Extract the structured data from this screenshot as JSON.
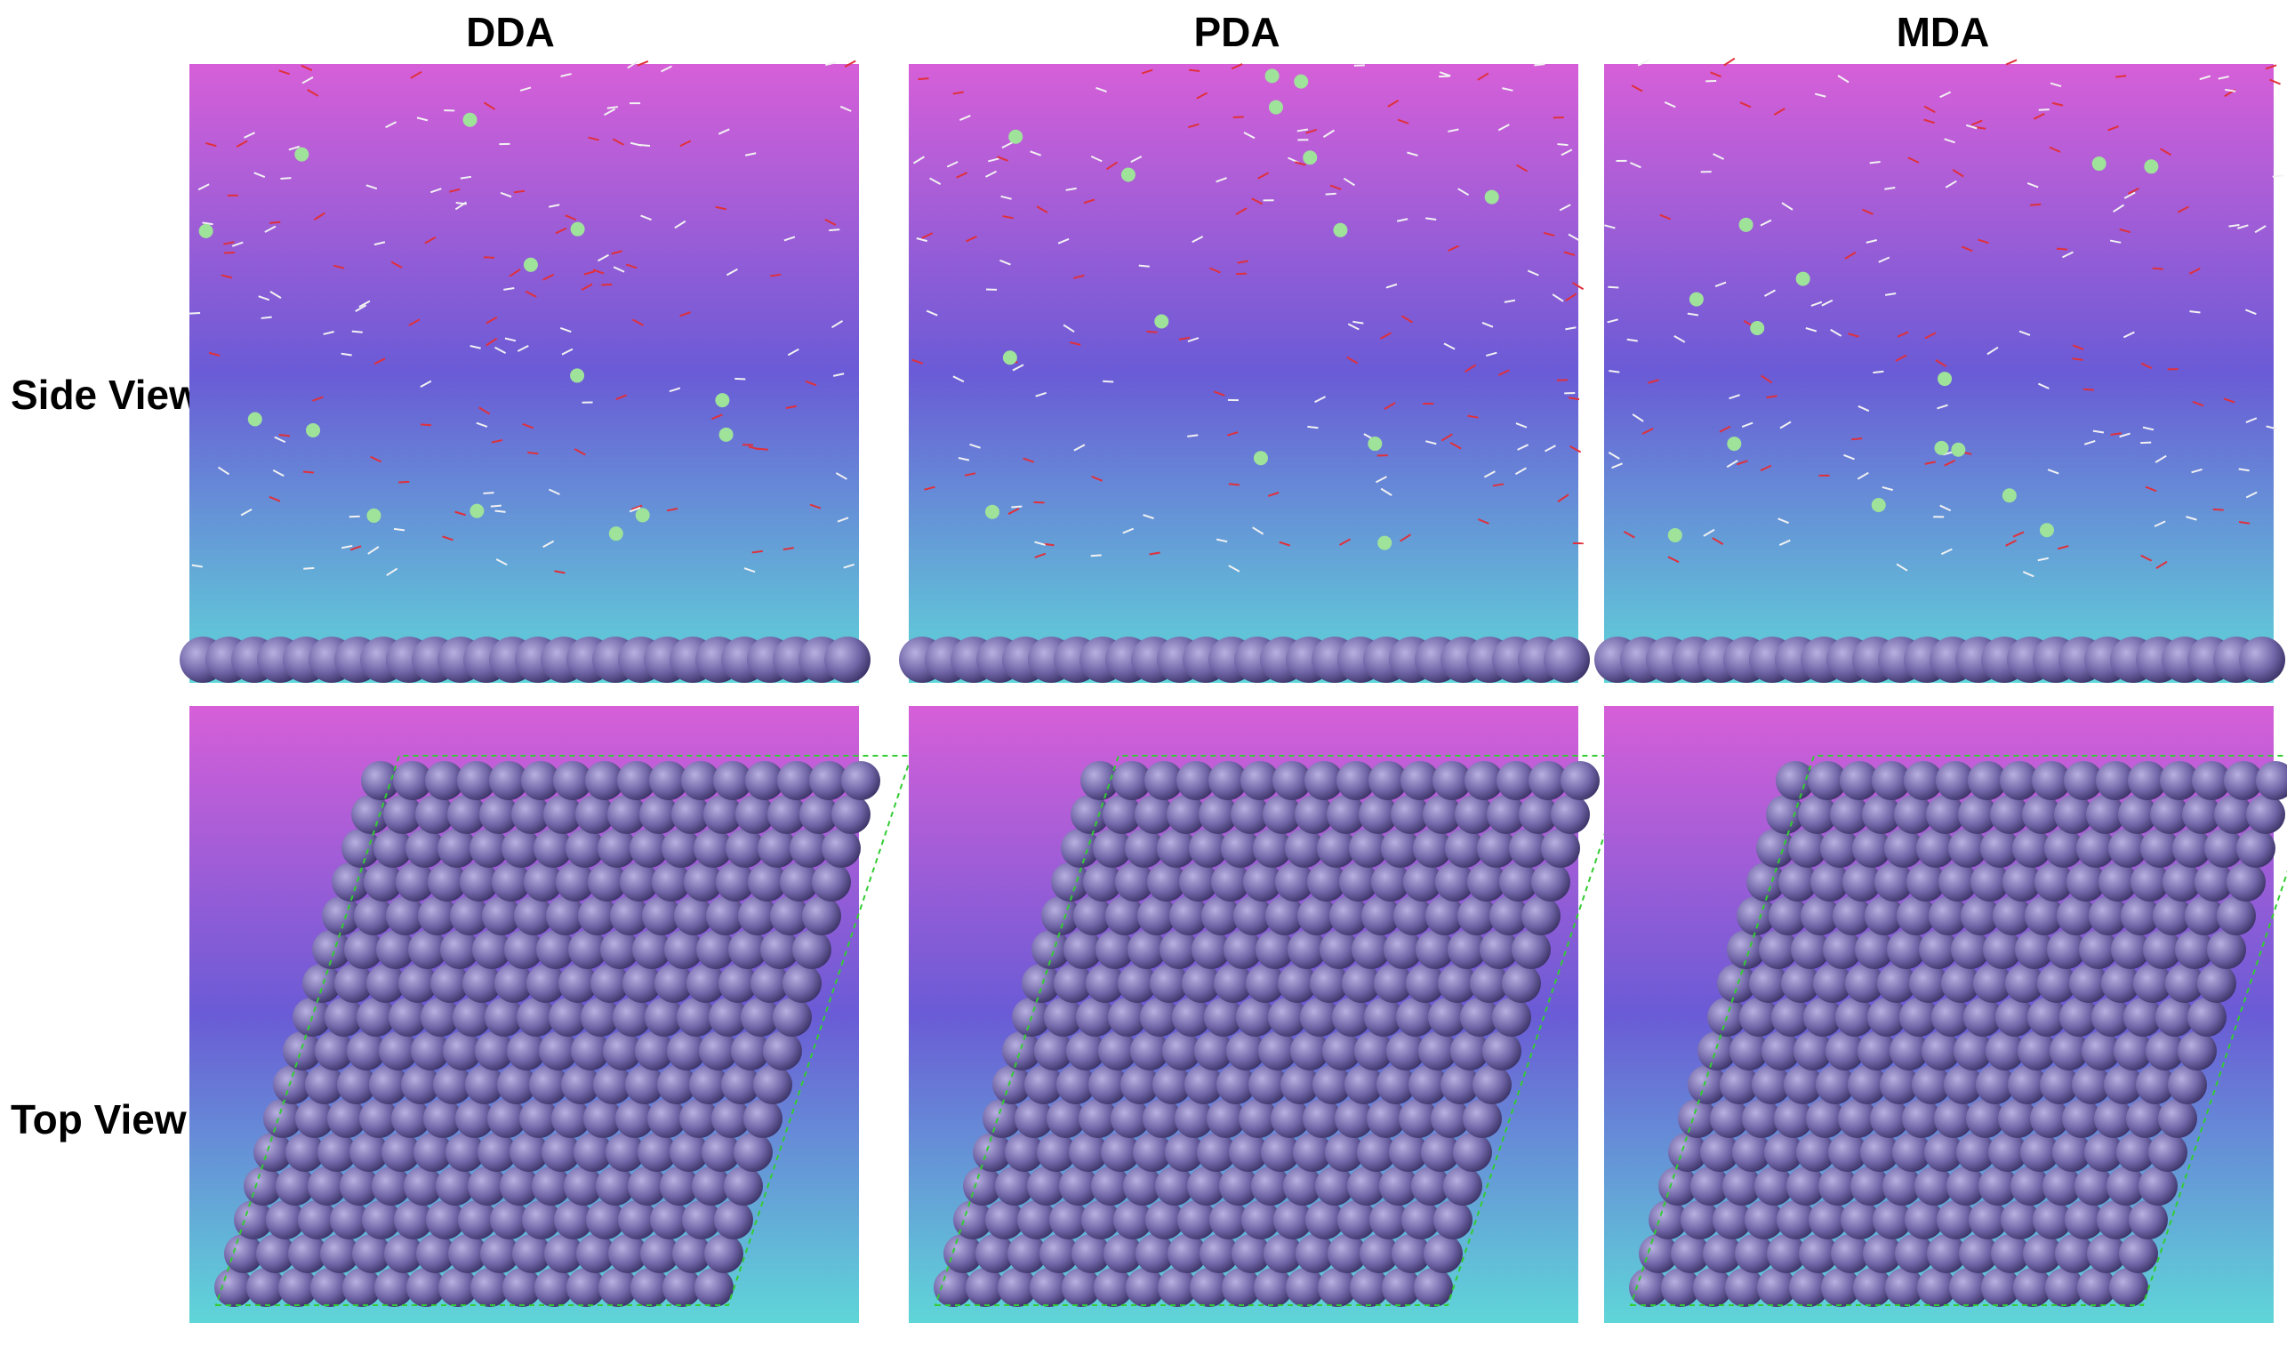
{
  "columns": [
    "DDA",
    "PDA",
    "MDA"
  ],
  "rows": [
    "Side View",
    "Top View"
  ]
}
